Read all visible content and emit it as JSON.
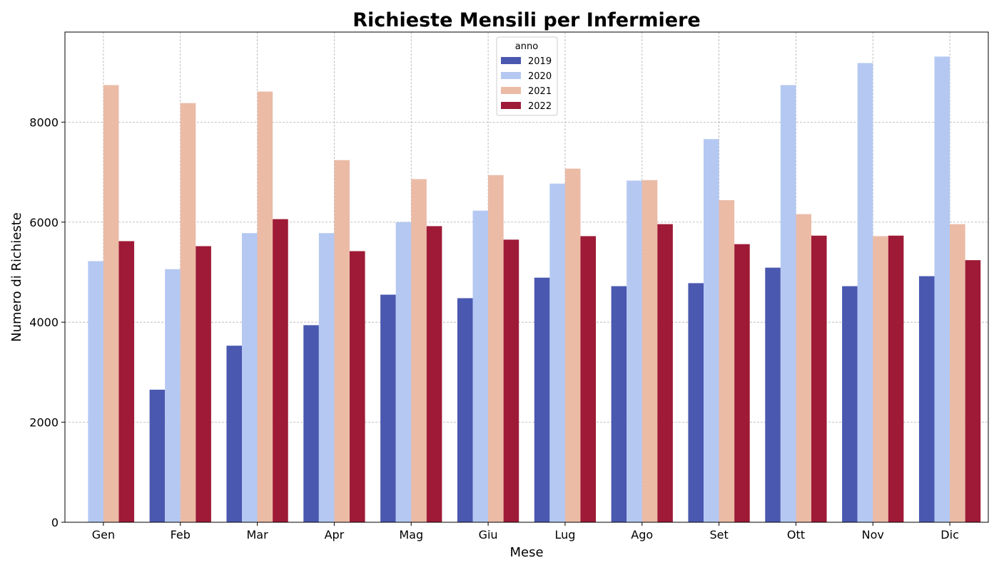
{
  "chart_data": {
    "type": "bar",
    "title": "Richieste Mensili per Infermiere",
    "xlabel": "Mese",
    "ylabel": "Numero di Richieste",
    "categories": [
      "Gen",
      "Feb",
      "Mar",
      "Apr",
      "Mag",
      "Giu",
      "Lug",
      "Ago",
      "Set",
      "Ott",
      "Nov",
      "Dic"
    ],
    "ylim": [
      0,
      9800
    ],
    "yticks": [
      0,
      2000,
      4000,
      6000,
      8000
    ],
    "grid": true,
    "legend": {
      "title": "anno",
      "placement": "top-center"
    },
    "series": [
      {
        "name": "2019",
        "color": "#4a58b0",
        "values": [
          0,
          2650,
          3530,
          3940,
          4550,
          4480,
          4890,
          4720,
          4780,
          5090,
          4720,
          4920
        ]
      },
      {
        "name": "2020",
        "color": "#b4c8f2",
        "values": [
          5220,
          5060,
          5780,
          5780,
          6000,
          6230,
          6770,
          6830,
          7660,
          8740,
          9180,
          9310
        ]
      },
      {
        "name": "2021",
        "color": "#ebbba6",
        "values": [
          8740,
          8380,
          8610,
          7240,
          6860,
          6940,
          7070,
          6840,
          6440,
          6160,
          5720,
          5960
        ]
      },
      {
        "name": "2022",
        "color": "#9e1a36",
        "values": [
          5620,
          5520,
          6060,
          5420,
          5920,
          5650,
          5720,
          5960,
          5560,
          5730,
          5730,
          5240
        ]
      }
    ]
  }
}
